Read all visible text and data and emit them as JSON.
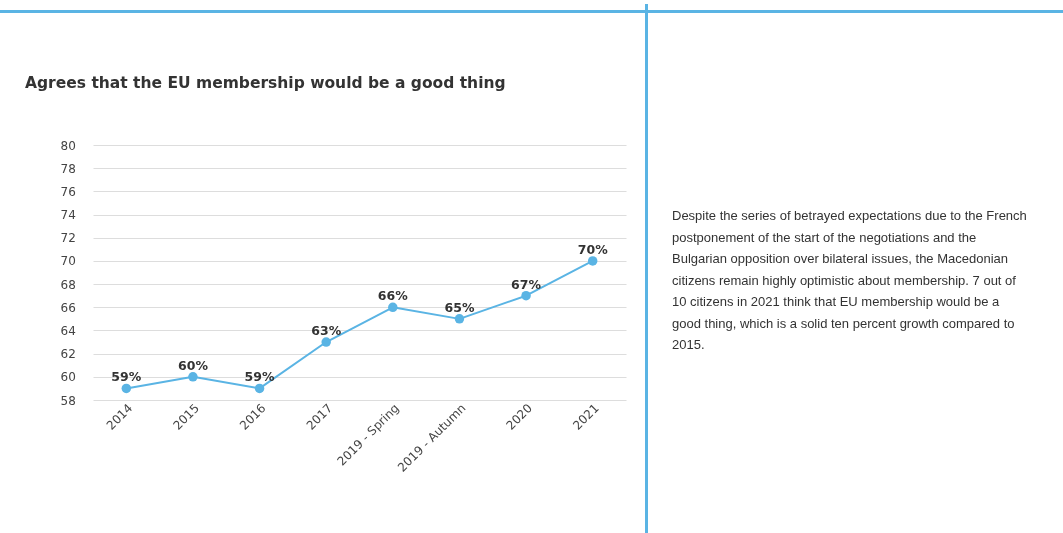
{
  "chart_data": {
    "type": "line",
    "title": "Agrees that the EU membership would be a good thing",
    "categories": [
      "2014",
      "2015",
      "2016",
      "2017",
      "2019 - Spring",
      "2019 - Autumn",
      "2020",
      "2021"
    ],
    "series": [
      {
        "color": "#5ab4e4",
        "values": [
          59,
          60,
          59,
          63,
          66,
          65,
          67,
          70
        ],
        "value_labels": [
          "59%",
          "60%",
          "59%",
          "63%",
          "66%",
          "65%",
          "67%",
          "70%"
        ]
      }
    ],
    "ylim": [
      58,
      80
    ],
    "yticks": [
      58,
      60,
      62,
      64,
      66,
      68,
      70,
      72,
      74,
      76,
      78,
      80
    ],
    "grid": "y",
    "marker": "circle",
    "annotations": [
      "Despite the series of betrayed expectations due to the French postponement of the start of the negotiations and the Bulgarian opposition over bilateral issues, the Macedonian citizens remain highly optimistic about membership. 7 out of 10 citizens in 2021 think that EU membership would be a good thing, which is a solid ten percent growth compared to 2015."
    ]
  }
}
